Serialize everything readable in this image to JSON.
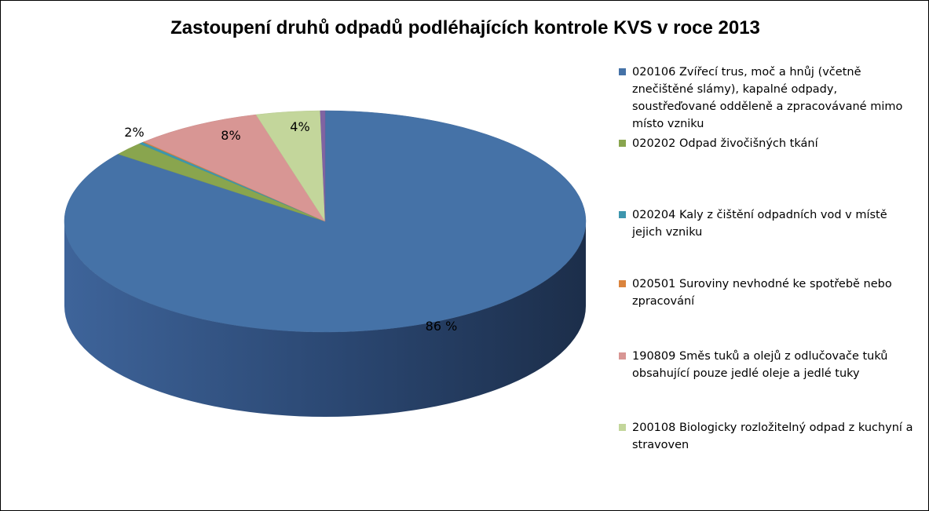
{
  "chart_data": {
    "type": "pie",
    "title": "Zastoupení druhů odpadů podléhajících kontrole KVS v roce 2013",
    "legend_position": "right",
    "slices": [
      {
        "name": "020106 Zvířecí trus, moč a hnůj (včetně znečištěné slámy), kapalné odpady, soustřeďované odděleně a zpracovávané mimo místo vzniku",
        "value": 86,
        "label": "86 %",
        "color": "#4572A7"
      },
      {
        "name": "020202 Odpad živočišných tkání",
        "value": 2,
        "label": "2%",
        "color": "#89A54E"
      },
      {
        "name": "020204 Kaly z čištění odpadních vod v místě jejich vzniku",
        "value": 0.3,
        "label": "",
        "color": "#3D96AE"
      },
      {
        "name": "020501 Suroviny nevhodné ke spotřebě nebo zpracování",
        "value": 0.1,
        "label": "",
        "color": "#DB843D"
      },
      {
        "name": "190809 Směs tuků a olejů z odlučovače tuků obsahující pouze jedlé oleje a jedlé tuky",
        "value": 8,
        "label": "8%",
        "color": "#D89694"
      },
      {
        "name": "200108 Biologicky rozložitelný odpad z kuchyní a stravoven",
        "value": 4,
        "label": "4%",
        "color": "#C3D69B"
      },
      {
        "name": "",
        "value": 0.3,
        "label": "",
        "color": "#8064A2"
      }
    ]
  }
}
